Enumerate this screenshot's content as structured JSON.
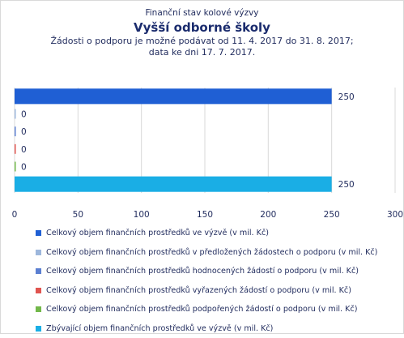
{
  "chart_data": {
    "type": "bar",
    "orientation": "horizontal",
    "supertitle": "Finanční stav kolové výzvy",
    "title": "Vyšší odborné školy",
    "subtitle_lines": [
      "Žádosti o podporu je možné  podávat od 11. 4. 2017 do 31. 8. 2017;",
      "data ke dni 17. 7. 2017."
    ],
    "xlim": [
      0,
      300
    ],
    "xticks": [
      0,
      50,
      100,
      150,
      200,
      250,
      300
    ],
    "grid": true,
    "legend_position": "bottom",
    "series": [
      {
        "name": "Celkový objem finančních prostředků ve výzvě (v mil. Kč)",
        "value": 250,
        "label": "250",
        "color": "#1f5fd4"
      },
      {
        "name": "Celkový objem finančních prostředků v předložených žádostech o podporu (v mil. Kč)",
        "value": 0,
        "label": "0",
        "color": "#9db7dc"
      },
      {
        "name": "Celkový objem finančních prostředků hodnocených žádostí o podporu (v mil. Kč)",
        "value": 0,
        "label": "0",
        "color": "#5b7fd1"
      },
      {
        "name": "Celkový objem finančních prostředků vyřazených žádostí o podporu (v mil. Kč)",
        "value": 0,
        "label": "0",
        "color": "#e0544f"
      },
      {
        "name": "Celkový objem finančních prostředků podpořených žádostí o podporu (v mil. Kč)",
        "value": 0,
        "label": "0",
        "color": "#72b84a"
      },
      {
        "name": "Zbývající objem finančních prostředků ve výzvě (v mil. Kč)",
        "value": 250,
        "label": "250",
        "color": "#1aaee5"
      }
    ]
  }
}
